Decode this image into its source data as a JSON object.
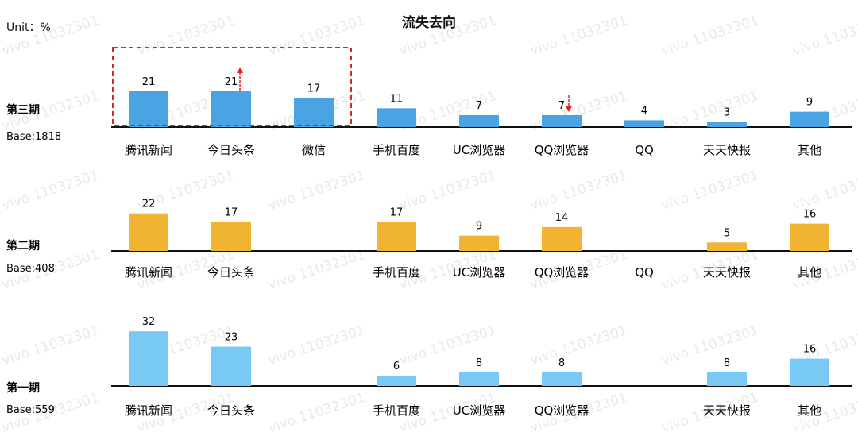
{
  "header": {
    "unit": "Unit：%",
    "title": "流失去向"
  },
  "watermark": {
    "text": "vivo 11032301"
  },
  "colors": {
    "period3": "#4aa3e2",
    "period2": "#f0b432",
    "period1": "#78c9f3",
    "highlight_box": "#e02424",
    "arrow": "#e02424",
    "baseline": "#111111"
  },
  "chart_data": [
    {
      "type": "bar",
      "period": "第三期",
      "base": "Base:1818",
      "categories": [
        "腾讯新闻",
        "今日头条",
        "微信",
        "手机百度",
        "UC浏览器",
        "QQ浏览器",
        "QQ",
        "天天快报",
        "其他"
      ],
      "values": [
        21,
        21,
        17,
        11,
        7,
        7,
        4,
        3,
        9
      ],
      "annotations": {
        "highlight_box_categories": [
          "腾讯新闻",
          "今日头条",
          "微信"
        ],
        "up_arrow_category": "今日头条",
        "down_arrow_category": "QQ浏览器"
      }
    },
    {
      "type": "bar",
      "period": "第二期",
      "base": "Base:408",
      "categories": [
        "腾讯新闻",
        "今日头条",
        "手机百度",
        "UC浏览器",
        "QQ浏览器",
        "QQ",
        "天天快报",
        "其他"
      ],
      "values": [
        22,
        17,
        17,
        9,
        14,
        null,
        5,
        16
      ]
    },
    {
      "type": "bar",
      "period": "第一期",
      "base": "Base:559",
      "categories": [
        "腾讯新闻",
        "今日头条",
        "手机百度",
        "UC浏览器",
        "QQ浏览器",
        "天天快报",
        "其他"
      ],
      "values": [
        32,
        23,
        6,
        8,
        8,
        8,
        16
      ]
    }
  ]
}
